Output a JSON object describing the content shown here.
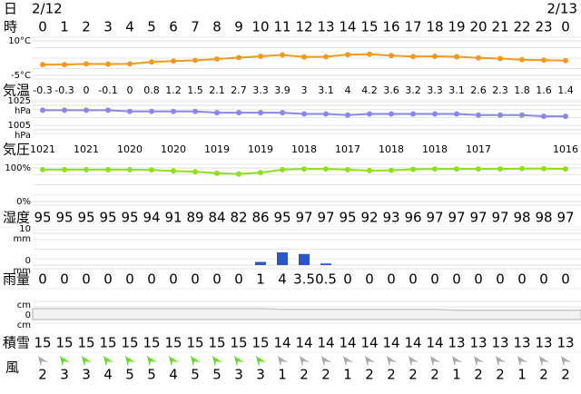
{
  "day_label": "日",
  "hour_label": "時",
  "dates": [
    "2/12",
    null,
    null,
    null,
    null,
    null,
    null,
    null,
    null,
    null,
    null,
    null,
    null,
    null,
    null,
    null,
    null,
    null,
    null,
    null,
    null,
    null,
    null,
    null,
    "2/13"
  ],
  "hours": [
    0,
    1,
    2,
    3,
    4,
    5,
    6,
    7,
    8,
    9,
    10,
    11,
    12,
    13,
    14,
    15,
    16,
    17,
    18,
    19,
    20,
    21,
    22,
    23,
    0
  ],
  "temperature": {
    "label": "気温",
    "color": "#f39a1e",
    "ylim": [
      -5,
      10
    ],
    "yticks": [
      {
        "value": 10,
        "label": "10°C"
      },
      {
        "value": -5,
        "label": "-5°C"
      }
    ],
    "values": [
      -0.3,
      -0.3,
      0,
      -0.1,
      0,
      0.8,
      1.2,
      1.5,
      2.1,
      2.7,
      3.3,
      3.9,
      3,
      3.1,
      4,
      4.2,
      3.6,
      3.2,
      3.3,
      3.1,
      2.6,
      2.3,
      1.8,
      1.6,
      1.4
    ]
  },
  "pressure": {
    "label": "気圧",
    "color": "#8a86ee",
    "ylim": [
      1005,
      1025
    ],
    "yticks": [
      {
        "value": 1025,
        "label": "1025",
        "unit": "hPa"
      },
      {
        "value": 1005,
        "label": "1005",
        "unit": "hPa"
      }
    ],
    "values": [
      1021,
      1021,
      1021,
      1021,
      1020,
      1020,
      1020,
      1020,
      1019,
      1019,
      1019,
      1019,
      1018,
      1018,
      1017,
      1018,
      1018,
      1018,
      1018,
      1018,
      1017,
      1017,
      1017,
      1016,
      1016
    ],
    "value_labels": [
      1021,
      null,
      1021,
      null,
      1020,
      null,
      1020,
      null,
      1019,
      null,
      1019,
      null,
      1018,
      null,
      1017,
      null,
      1018,
      null,
      1018,
      null,
      1017,
      null,
      null,
      null,
      1016
    ]
  },
  "humidity": {
    "label": "湿度",
    "color": "#8fe01a",
    "ylim": [
      0,
      100
    ],
    "yticks": [
      {
        "value": 100,
        "label": "100%"
      },
      {
        "value": 0,
        "label": "0%"
      }
    ],
    "values": [
      95,
      95,
      95,
      95,
      95,
      94,
      91,
      89,
      84,
      82,
      86,
      95,
      97,
      97,
      95,
      92,
      93,
      96,
      97,
      97,
      97,
      97,
      98,
      98,
      97
    ]
  },
  "rain": {
    "label": "雨量",
    "color": "#2b55c8",
    "ylim": [
      0,
      10
    ],
    "yticks": [
      {
        "value": 10,
        "label": "10",
        "unit": "mm"
      },
      {
        "value": 0,
        "label": "0",
        "unit": "mm"
      }
    ],
    "values": [
      0,
      0,
      0,
      0,
      0,
      0,
      0,
      0,
      0,
      0,
      1,
      4,
      3.5,
      0.5,
      0,
      0,
      0,
      0,
      0,
      0,
      0,
      0,
      0,
      0,
      0
    ]
  },
  "snow": {
    "label": "積雪",
    "color": "#c8c8c8",
    "ylim": [
      0,
      20
    ],
    "top_unit": "cm",
    "yticks": [
      {
        "value": 0,
        "label": "0",
        "unit": "cm"
      }
    ],
    "values": [
      15,
      15,
      15,
      15,
      15,
      15,
      15,
      15,
      15,
      15,
      15,
      14,
      14,
      14,
      14,
      14,
      14,
      14,
      14,
      13,
      13,
      13,
      13,
      13,
      13
    ]
  },
  "wind": {
    "label": "風",
    "values": [
      2,
      3,
      3,
      4,
      5,
      5,
      4,
      5,
      5,
      3,
      3,
      1,
      2,
      2,
      1,
      2,
      2,
      2,
      2,
      1,
      2,
      2,
      1,
      2,
      2
    ],
    "colors": [
      "#aaaaaa",
      "#66dd22",
      "#66dd22",
      "#66dd22",
      "#66dd22",
      "#66dd22",
      "#66dd22",
      "#66dd22",
      "#66dd22",
      "#66dd22",
      "#66dd22",
      "#aaaaaa",
      "#aaaaaa",
      "#aaaaaa",
      "#aaaaaa",
      "#aaaaaa",
      "#aaaaaa",
      "#aaaaaa",
      "#aaaaaa",
      "#aaaaaa",
      "#aaaaaa",
      "#aaaaaa",
      "#aaaaaa",
      "#aaaaaa",
      "#aaaaaa"
    ]
  }
}
